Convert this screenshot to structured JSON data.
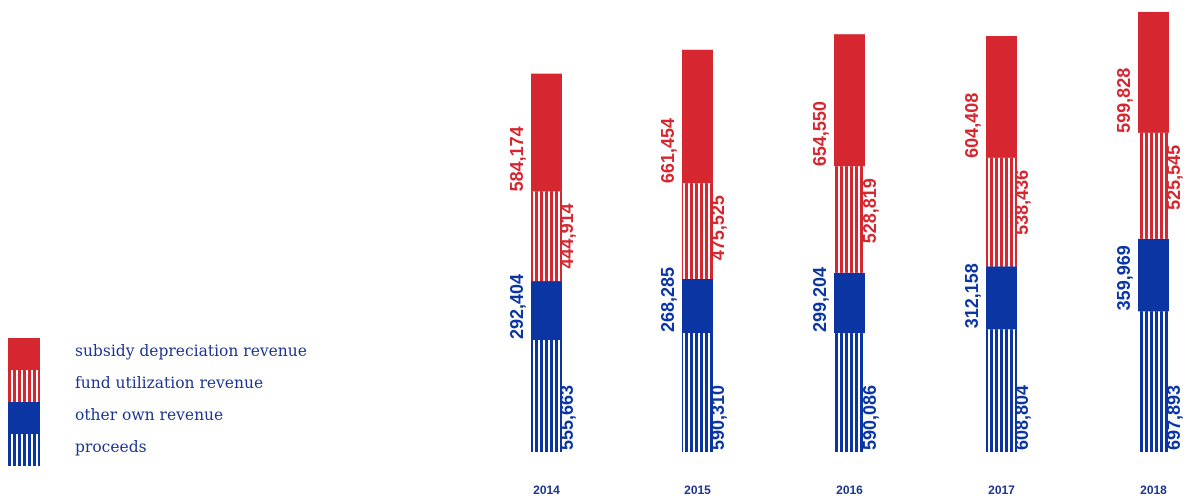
{
  "colors": {
    "blue": "#0a35a3",
    "red": "#d6262f",
    "year_label": "#1b3591"
  },
  "legend": {
    "items": [
      {
        "label": "subsidy depreciation revenue",
        "fill": "solid",
        "color": "#d6262f"
      },
      {
        "label": "fund utilization revenue",
        "fill": "striped",
        "color": "#d6262f"
      },
      {
        "label": "other own revenue",
        "fill": "solid",
        "color": "#0a35a3"
      },
      {
        "label": "proceeds",
        "fill": "striped",
        "color": "#0a35a3"
      }
    ]
  },
  "chart_data": {
    "type": "bar",
    "stacked": true,
    "categories": [
      "2014",
      "2015",
      "2016",
      "2017",
      "2018"
    ],
    "series": [
      {
        "name": "proceeds",
        "fill": "striped",
        "color": "#0a35a3",
        "values": [
          555663,
          590310,
          590086,
          608804,
          697893
        ]
      },
      {
        "name": "other own revenue",
        "fill": "solid",
        "color": "#0a35a3",
        "values": [
          292404,
          268285,
          299204,
          312158,
          359969
        ]
      },
      {
        "name": "fund utilization revenue",
        "fill": "striped",
        "color": "#d6262f",
        "values": [
          444914,
          475525,
          528819,
          538436,
          525545
        ]
      },
      {
        "name": "subsidy depreciation revenue",
        "fill": "solid",
        "color": "#d6262f",
        "values": [
          584174,
          661454,
          654550,
          604408,
          599828
        ]
      }
    ],
    "value_labels": [
      [
        "555,663",
        "590,310",
        "590,086",
        "608,804",
        "697,893"
      ],
      [
        "292,404",
        "268,285",
        "299,204",
        "312,158",
        "359,969"
      ],
      [
        "444,914",
        "475,525",
        "528,819",
        "538,436",
        "525,545"
      ],
      [
        "584,174",
        "661,454",
        "654,550",
        "604,408",
        "599,828"
      ]
    ],
    "xlabel": "",
    "ylabel": "",
    "grid": false,
    "legend_position": "left"
  }
}
